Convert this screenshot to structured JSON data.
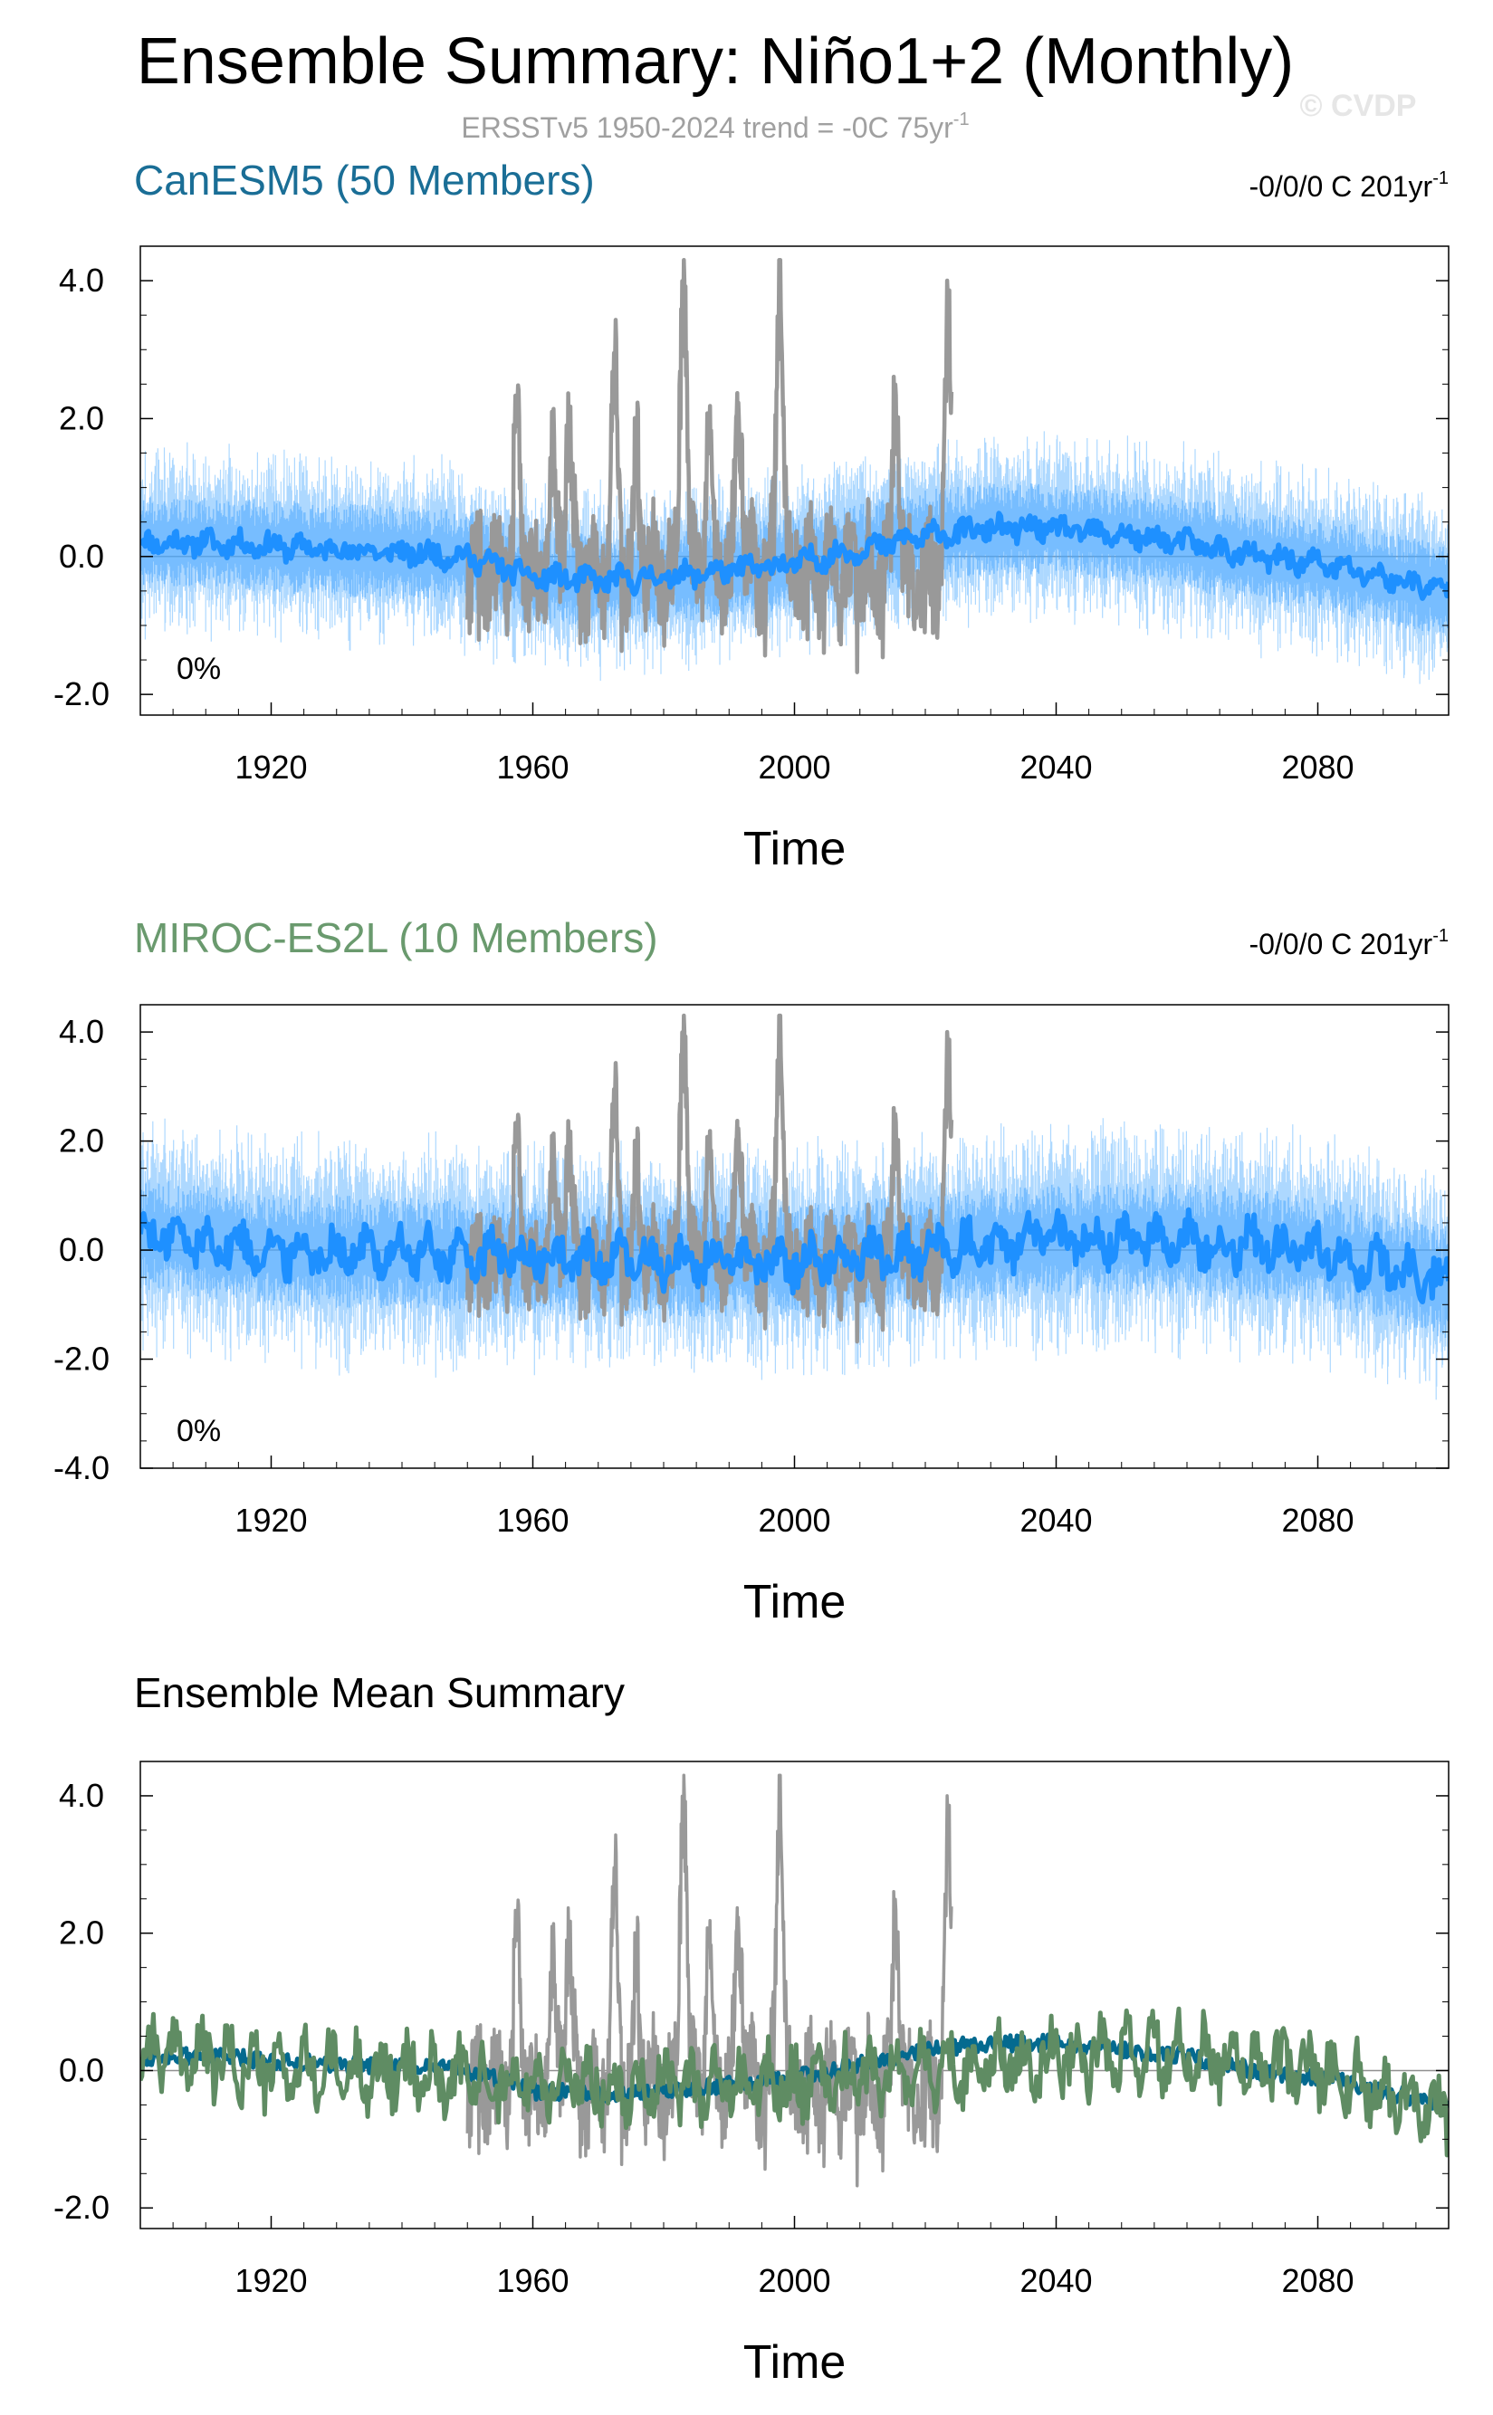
{
  "header": {
    "title": "Ensemble Summary: Niño1+2 (Monthly)",
    "subtitle": "ERSSTv5 1950-2024 trend = -0C 75yr",
    "subtitle_sup": "-1",
    "watermark": "© CVDP"
  },
  "colors": {
    "obs": "#999999",
    "member_spread": "#4aa8ff",
    "member_mean": "#1e90ff",
    "canesm5_mean": "#046a8f",
    "miroc_mean": "#5f8c63",
    "canesm5_title": "#1a6e96",
    "miroc_title": "#6a9a6e"
  },
  "chart_data": [
    {
      "type": "line",
      "title": "CanESM5 (50 Members)",
      "trend_label": "-0/0/0 C 201yr",
      "trend_sup": "-1",
      "percent_label": "0%",
      "xlabel": "Time",
      "xlim": [
        1900,
        2100
      ],
      "ylim": [
        -2.3,
        4.5
      ],
      "xticks": [
        1920,
        1960,
        2000,
        2040,
        2080
      ],
      "xtick_labels": [
        "1920",
        "1960",
        "2000",
        "2040",
        "2080"
      ],
      "yticks": [
        -2,
        0,
        2,
        4
      ],
      "ytick_labels": [
        "-2.0",
        "0.0",
        "2.0",
        "4.0"
      ],
      "series": [
        {
          "key": "ensemble_spread",
          "x_range": [
            1900,
            2100
          ],
          "envelope_amp": 1.5
        },
        {
          "key": "ensemble_mean",
          "x": [
            1900,
            1910,
            1920,
            1930,
            1940,
            1950,
            1960,
            1970,
            1980,
            1990,
            2000,
            2010,
            2020,
            2030,
            2040,
            2050,
            2060,
            2070,
            2080,
            2090,
            2100
          ],
          "y": [
            0.2,
            0.2,
            0.15,
            0.1,
            0.05,
            0.0,
            -0.3,
            -0.35,
            -0.3,
            -0.2,
            -0.1,
            0.1,
            0.3,
            0.4,
            0.4,
            0.3,
            0.2,
            0.0,
            -0.1,
            -0.3,
            -0.5
          ]
        },
        {
          "key": "observed",
          "x_range": [
            1950,
            2024
          ],
          "peaks": [
            {
              "x": 1957.5,
              "y": 2.0
            },
            {
              "x": 1963,
              "y": 1.5
            },
            {
              "x": 1965.5,
              "y": 2.0
            },
            {
              "x": 1972.5,
              "y": 2.6
            },
            {
              "x": 1976,
              "y": 1.5
            },
            {
              "x": 1983,
              "y": 4.3
            },
            {
              "x": 1987,
              "y": 1.7
            },
            {
              "x": 1991.5,
              "y": 2.3
            },
            {
              "x": 1997.8,
              "y": 4.3
            },
            {
              "x": 2015.5,
              "y": 2.4
            },
            {
              "x": 2023.5,
              "y": 3.1
            }
          ]
        }
      ]
    },
    {
      "type": "line",
      "title": "MIROC-ES2L (10 Members)",
      "trend_label": "-0/0/0 C 201yr",
      "trend_sup": "-1",
      "percent_label": "0%",
      "xlabel": "Time",
      "xlim": [
        1900,
        2100
      ],
      "ylim": [
        -4.0,
        4.5
      ],
      "xticks": [
        1920,
        1960,
        2000,
        2040,
        2080
      ],
      "xtick_labels": [
        "1920",
        "1960",
        "2000",
        "2040",
        "2080"
      ],
      "yticks": [
        -4,
        -2,
        0,
        2,
        4
      ],
      "ytick_labels": [
        "-4.0",
        "-2.0",
        "0.0",
        "2.0",
        "4.0"
      ],
      "series": [
        {
          "key": "ensemble_spread",
          "x_range": [
            1900,
            2100
          ],
          "envelope_amp": 2.3
        },
        {
          "key": "ensemble_mean",
          "x": [
            1900,
            1920,
            1940,
            1960,
            1980,
            2000,
            2020,
            2040,
            2060,
            2080,
            2100
          ],
          "y": [
            0.3,
            0.0,
            -0.05,
            -0.15,
            -0.2,
            -0.2,
            0.0,
            0.2,
            0.2,
            0.0,
            -0.6
          ]
        },
        {
          "key": "observed",
          "x_range": [
            1950,
            2024
          ],
          "peaks": [
            {
              "x": 1957.5,
              "y": 2.0
            },
            {
              "x": 1963,
              "y": 1.5
            },
            {
              "x": 1965.5,
              "y": 2.0
            },
            {
              "x": 1972.5,
              "y": 2.6
            },
            {
              "x": 1976,
              "y": 1.5
            },
            {
              "x": 1983,
              "y": 4.3
            },
            {
              "x": 1987,
              "y": 1.7
            },
            {
              "x": 1991.5,
              "y": 2.3
            },
            {
              "x": 1997.8,
              "y": 4.3
            },
            {
              "x": 2015.5,
              "y": 2.4
            },
            {
              "x": 2023.5,
              "y": 3.1
            }
          ]
        }
      ]
    },
    {
      "type": "line",
      "title": "Ensemble Mean Summary",
      "xlabel": "Time",
      "xlim": [
        1900,
        2100
      ],
      "ylim": [
        -2.3,
        4.5
      ],
      "xticks": [
        1920,
        1960,
        2000,
        2040,
        2080
      ],
      "xtick_labels": [
        "1920",
        "1960",
        "2000",
        "2040",
        "2080"
      ],
      "yticks": [
        -2,
        0,
        2,
        4
      ],
      "ytick_labels": [
        "-2.0",
        "0.0",
        "2.0",
        "4.0"
      ],
      "series": [
        {
          "key": "canesm5_mean",
          "x": [
            1900,
            1910,
            1920,
            1930,
            1940,
            1950,
            1960,
            1970,
            1980,
            1990,
            2000,
            2010,
            2020,
            2030,
            2040,
            2050,
            2060,
            2070,
            2080,
            2090,
            2100
          ],
          "y": [
            0.2,
            0.2,
            0.15,
            0.1,
            0.05,
            0.0,
            -0.3,
            -0.35,
            -0.3,
            -0.2,
            -0.1,
            0.1,
            0.3,
            0.4,
            0.4,
            0.3,
            0.2,
            0.0,
            -0.1,
            -0.3,
            -0.5
          ]
        },
        {
          "key": "miroc_mean",
          "x": [
            1900,
            1920,
            1940,
            1960,
            1980,
            2000,
            2020,
            2040,
            2060,
            2080,
            2100
          ],
          "y": [
            0.3,
            0.0,
            -0.05,
            -0.15,
            -0.2,
            -0.2,
            0.0,
            0.2,
            0.2,
            0.0,
            -0.6
          ]
        },
        {
          "key": "observed",
          "x_range": [
            1950,
            2024
          ],
          "peaks": [
            {
              "x": 1957.5,
              "y": 2.0
            },
            {
              "x": 1963,
              "y": 1.5
            },
            {
              "x": 1965.5,
              "y": 2.0
            },
            {
              "x": 1972.5,
              "y": 2.6
            },
            {
              "x": 1976,
              "y": 1.5
            },
            {
              "x": 1983,
              "y": 4.3
            },
            {
              "x": 1987,
              "y": 1.7
            },
            {
              "x": 1991.5,
              "y": 2.3
            },
            {
              "x": 1997.8,
              "y": 4.3
            },
            {
              "x": 2015.5,
              "y": 2.4
            },
            {
              "x": 2023.5,
              "y": 3.1
            }
          ]
        }
      ]
    }
  ]
}
